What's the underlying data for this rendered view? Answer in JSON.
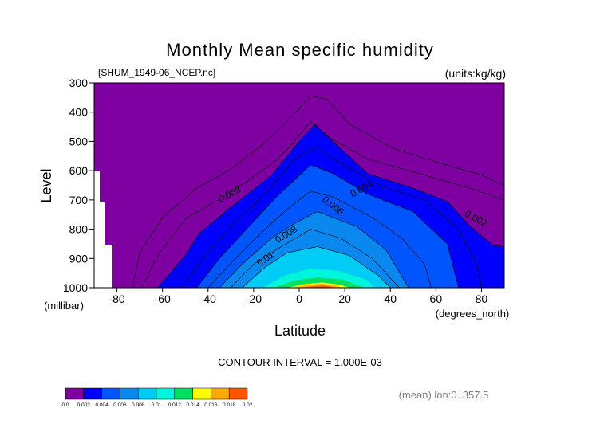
{
  "chart_data": {
    "type": "contour",
    "title": "Monthly Mean specific humidity",
    "source_file": "[SHUM_1949-06_NCEP.nc]",
    "units": "(units:kg/kg)",
    "xlabel": "Latitude",
    "x_units": "(degrees_north)",
    "ylabel": "Level",
    "y_units": "(millibar)",
    "xlim": [
      -90,
      90
    ],
    "ylim": [
      1000,
      300
    ],
    "x_ticks": [
      -80,
      -60,
      -40,
      -20,
      0,
      20,
      40,
      60,
      80
    ],
    "y_ticks": [
      300,
      400,
      500,
      600,
      700,
      800,
      900,
      1000
    ],
    "contour_interval_text": "CONTOUR INTERVAL = 1.000E-03",
    "averaging_note": "(mean) lon:0..357.5",
    "contour_labels": [
      {
        "text": "0.002",
        "lat": -30,
        "level": 690
      },
      {
        "text": "0.004",
        "lat": 28,
        "level": 672
      },
      {
        "text": "0.006",
        "lat": 14,
        "level": 728
      },
      {
        "text": "0.008",
        "lat": -5,
        "level": 827
      },
      {
        "text": "0.01",
        "lat": -14,
        "level": 910
      },
      {
        "text": "0.002",
        "lat": 77,
        "level": 773
      }
    ],
    "levels": [
      0.0,
      0.002,
      0.004,
      0.006,
      0.008,
      0.01,
      0.012,
      0.014,
      0.016,
      0.018,
      0.02
    ],
    "colorbar_labels": [
      "0.0",
      "0.002",
      "0.004",
      "0.006",
      "0.008",
      "0.01",
      "0.012",
      "0.014",
      "0.016",
      "0.018",
      "0.02"
    ],
    "colors": [
      "#7f00a0",
      "#0000ff",
      "#0055ff",
      "#0a88f0",
      "#00ccf5",
      "#00f5dd",
      "#00e060",
      "#ffff00",
      "#ffaa00",
      "#ff5500",
      "#ff0000"
    ],
    "missing_data_lat_max": -82,
    "bands": [
      {
        "threshold": 0.001,
        "points": [
          [
            -69,
            1000
          ],
          [
            -63,
            900
          ],
          [
            -50,
            765
          ],
          [
            -30,
            675
          ],
          [
            -10,
            565
          ],
          [
            -2,
            500
          ],
          [
            5,
            432
          ],
          [
            14,
            490
          ],
          [
            30,
            560
          ],
          [
            55,
            615
          ],
          [
            75,
            660
          ],
          [
            90,
            700
          ],
          [
            90,
            300
          ],
          [
            -90,
            300
          ],
          [
            -90,
            1000
          ]
        ]
      },
      {
        "threshold": 0.002,
        "points": [
          [
            -62,
            1000
          ],
          [
            -50,
            890
          ],
          [
            -44,
            815
          ],
          [
            -30,
            725
          ],
          [
            -12,
            615
          ],
          [
            0,
            500
          ],
          [
            7,
            442
          ],
          [
            12,
            480
          ],
          [
            30,
            610
          ],
          [
            50,
            660
          ],
          [
            65,
            705
          ],
          [
            75,
            790
          ],
          [
            85,
            855
          ],
          [
            90,
            860
          ],
          [
            90,
            1000
          ]
        ]
      },
      {
        "threshold": 0.003,
        "points": [
          [
            -52,
            1000
          ],
          [
            -40,
            880
          ],
          [
            -30,
            790
          ],
          [
            -15,
            680
          ],
          [
            -2,
            560
          ],
          [
            8,
            520
          ],
          [
            15,
            560
          ],
          [
            35,
            650
          ],
          [
            55,
            700
          ],
          [
            70,
            800
          ],
          [
            78,
            920
          ],
          [
            80,
            1000
          ]
        ]
      },
      {
        "threshold": 0.004,
        "points": [
          [
            -45,
            1000
          ],
          [
            -35,
            900
          ],
          [
            -22,
            790
          ],
          [
            -10,
            690
          ],
          [
            5,
            580
          ],
          [
            15,
            610
          ],
          [
            30,
            680
          ],
          [
            50,
            740
          ],
          [
            65,
            850
          ],
          [
            70,
            1000
          ]
        ]
      },
      {
        "threshold": 0.005,
        "points": [
          [
            -40,
            1000
          ],
          [
            -28,
            900
          ],
          [
            -15,
            800
          ],
          [
            -5,
            730
          ],
          [
            5,
            670
          ],
          [
            15,
            690
          ],
          [
            32,
            760
          ],
          [
            45,
            830
          ],
          [
            55,
            920
          ],
          [
            58,
            1000
          ]
        ]
      },
      {
        "threshold": 0.006,
        "points": [
          [
            -35,
            1000
          ],
          [
            -25,
            920
          ],
          [
            -12,
            830
          ],
          [
            -2,
            780
          ],
          [
            8,
            740
          ],
          [
            25,
            790
          ],
          [
            38,
            870
          ],
          [
            48,
            1000
          ]
        ]
      },
      {
        "threshold": 0.007,
        "points": [
          [
            -30,
            1000
          ],
          [
            -20,
            920
          ],
          [
            -8,
            860
          ],
          [
            5,
            800
          ],
          [
            18,
            830
          ],
          [
            32,
            900
          ],
          [
            44,
            1000
          ]
        ]
      },
      {
        "threshold": 0.008,
        "points": [
          [
            -25,
            1000
          ],
          [
            -15,
            930
          ],
          [
            -5,
            880
          ],
          [
            8,
            860
          ],
          [
            22,
            890
          ],
          [
            35,
            960
          ],
          [
            40,
            1000
          ]
        ]
      },
      {
        "threshold": 0.009,
        "points": [
          [
            -20,
            1000
          ],
          [
            -10,
            945
          ],
          [
            0,
            912
          ],
          [
            12,
            905
          ],
          [
            25,
            935
          ],
          [
            34,
            980
          ],
          [
            37,
            1000
          ]
        ]
      },
      {
        "threshold": 0.01,
        "points": [
          [
            -16,
            1000
          ],
          [
            -6,
            957
          ],
          [
            5,
            935
          ],
          [
            18,
            943
          ],
          [
            30,
            975
          ],
          [
            33,
            1000
          ]
        ]
      },
      {
        "threshold": 0.011,
        "points": [
          [
            -13,
            1000
          ],
          [
            -4,
            968
          ],
          [
            6,
            953
          ],
          [
            18,
            960
          ],
          [
            28,
            985
          ],
          [
            31,
            1000
          ]
        ]
      },
      {
        "threshold": 0.012,
        "points": [
          [
            -11,
            1000
          ],
          [
            -2,
            975
          ],
          [
            8,
            965
          ],
          [
            19,
            972
          ],
          [
            27,
            995
          ],
          [
            29,
            1000
          ]
        ]
      },
      {
        "threshold": 0.013,
        "points": [
          [
            -8,
            1000
          ],
          [
            0,
            983
          ],
          [
            9,
            975
          ],
          [
            20,
            984
          ],
          [
            25,
            1000
          ]
        ]
      },
      {
        "threshold": 0.014,
        "points": [
          [
            -5,
            1000
          ],
          [
            2,
            988
          ],
          [
            10,
            982
          ],
          [
            18,
            990
          ],
          [
            22,
            1000
          ]
        ]
      },
      {
        "threshold": 0.016,
        "points": [
          [
            -3,
            1000
          ],
          [
            3,
            992
          ],
          [
            9,
            986
          ],
          [
            16,
            993
          ],
          [
            19,
            1000
          ]
        ]
      },
      {
        "threshold": 0.018,
        "points": [
          [
            1,
            1000
          ],
          [
            6,
            995
          ],
          [
            11,
            992
          ],
          [
            16,
            1000
          ]
        ]
      }
    ],
    "contour_lines": [
      [
        [
          -73,
          1000
        ],
        [
          -70,
          880
        ],
        [
          -60,
          760
        ],
        [
          -45,
          660
        ],
        [
          -30,
          595
        ],
        [
          -15,
          505
        ],
        [
          -5,
          430
        ],
        [
          5,
          345
        ],
        [
          12,
          355
        ],
        [
          22,
          440
        ],
        [
          40,
          520
        ],
        [
          60,
          570
        ],
        [
          80,
          615
        ],
        [
          90,
          650
        ]
      ],
      [
        [
          -69,
          1000
        ],
        [
          -63,
          900
        ],
        [
          -50,
          765
        ],
        [
          -30,
          675
        ],
        [
          -10,
          565
        ],
        [
          -2,
          500
        ],
        [
          5,
          432
        ],
        [
          14,
          490
        ],
        [
          30,
          560
        ],
        [
          55,
          615
        ],
        [
          75,
          660
        ],
        [
          90,
          700
        ]
      ],
      [
        [
          -62,
          1000
        ],
        [
          -50,
          890
        ],
        [
          -44,
          815
        ],
        [
          -30,
          725
        ],
        [
          -12,
          615
        ],
        [
          0,
          500
        ],
        [
          7,
          442
        ],
        [
          12,
          480
        ],
        [
          30,
          610
        ],
        [
          50,
          660
        ],
        [
          65,
          705
        ],
        [
          75,
          790
        ],
        [
          85,
          855
        ],
        [
          90,
          860
        ]
      ],
      [
        [
          -52,
          1000
        ],
        [
          -40,
          880
        ],
        [
          -30,
          790
        ],
        [
          -15,
          680
        ],
        [
          -2,
          560
        ],
        [
          8,
          520
        ],
        [
          15,
          560
        ],
        [
          35,
          650
        ],
        [
          55,
          700
        ],
        [
          70,
          800
        ],
        [
          78,
          920
        ],
        [
          80,
          1000
        ]
      ],
      [
        [
          -45,
          1000
        ],
        [
          -35,
          900
        ],
        [
          -22,
          790
        ],
        [
          -10,
          690
        ],
        [
          5,
          580
        ],
        [
          15,
          610
        ],
        [
          30,
          680
        ],
        [
          50,
          740
        ],
        [
          65,
          850
        ],
        [
          70,
          1000
        ]
      ],
      [
        [
          -40,
          1000
        ],
        [
          -28,
          900
        ],
        [
          -15,
          800
        ],
        [
          -5,
          730
        ],
        [
          5,
          670
        ],
        [
          15,
          690
        ],
        [
          32,
          760
        ],
        [
          45,
          830
        ],
        [
          55,
          920
        ],
        [
          58,
          1000
        ]
      ],
      [
        [
          -35,
          1000
        ],
        [
          -25,
          920
        ],
        [
          -12,
          830
        ],
        [
          -2,
          780
        ],
        [
          8,
          740
        ],
        [
          25,
          790
        ],
        [
          38,
          870
        ],
        [
          48,
          1000
        ]
      ],
      [
        [
          -30,
          1000
        ],
        [
          -20,
          920
        ],
        [
          -8,
          860
        ],
        [
          5,
          800
        ],
        [
          18,
          830
        ],
        [
          32,
          900
        ],
        [
          44,
          1000
        ]
      ],
      [
        [
          -25,
          1000
        ],
        [
          -15,
          930
        ],
        [
          -5,
          880
        ],
        [
          8,
          860
        ],
        [
          22,
          890
        ],
        [
          35,
          960
        ],
        [
          40,
          1000
        ]
      ]
    ]
  }
}
